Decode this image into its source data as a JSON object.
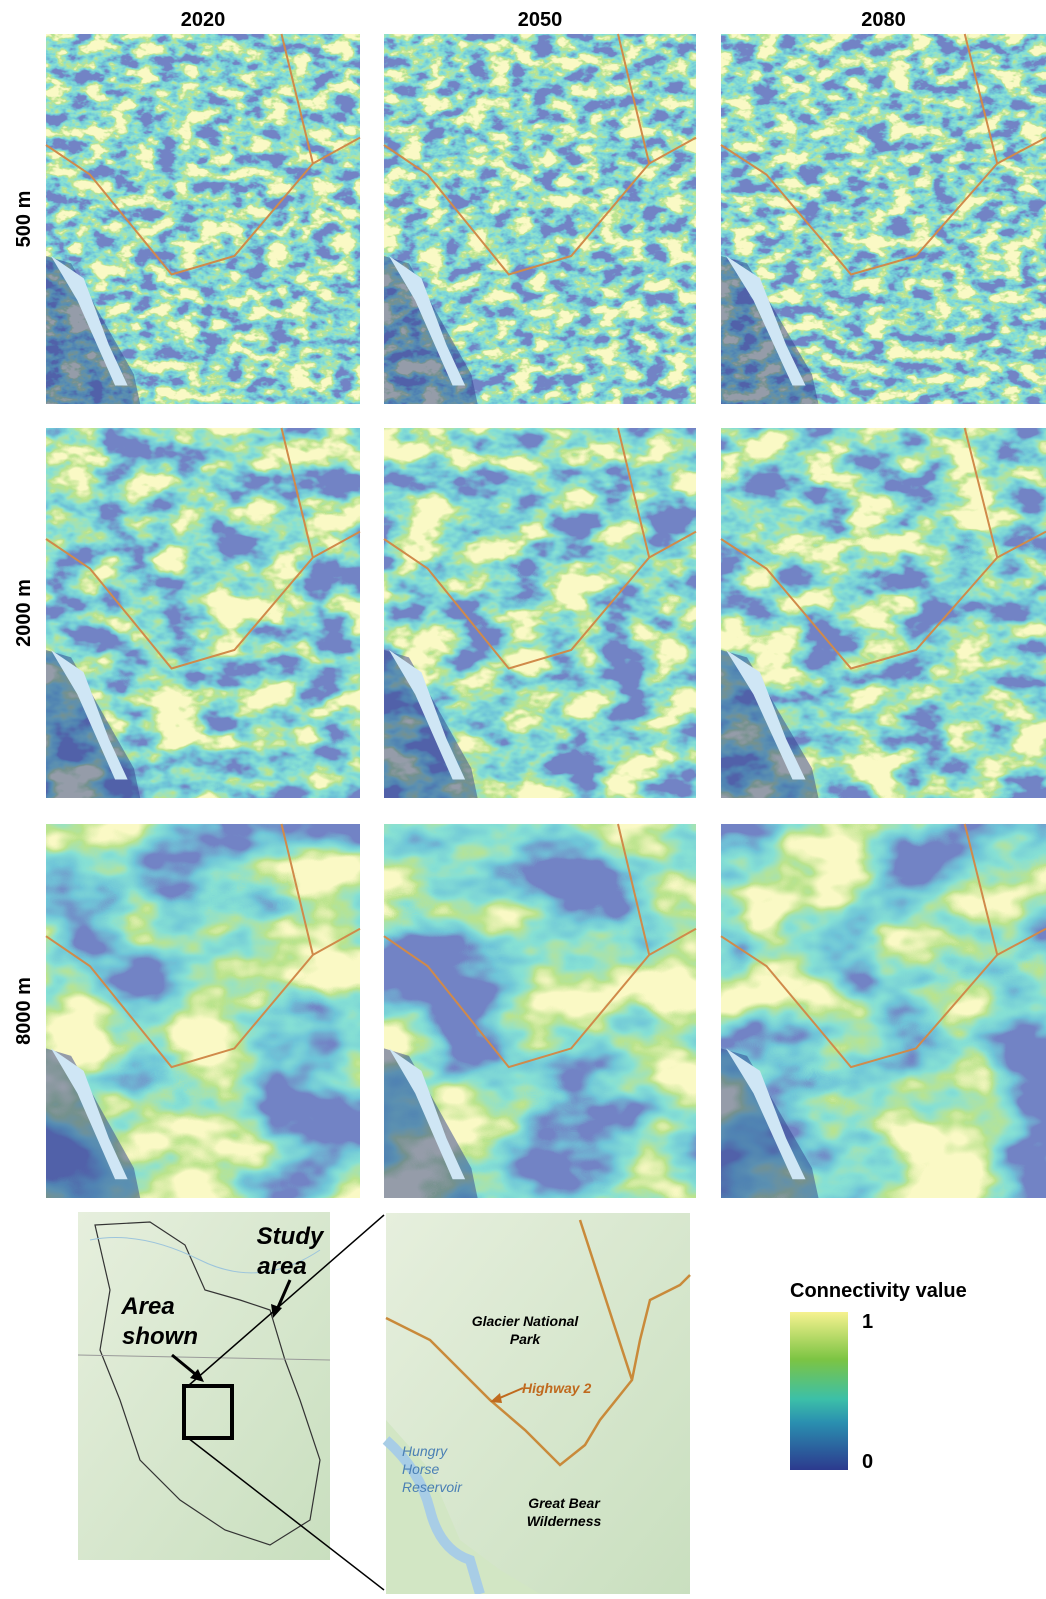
{
  "column_headers": [
    "2020",
    "2050",
    "2080"
  ],
  "row_labels": [
    "500 m",
    "2000 m",
    "8000 m"
  ],
  "inset_map": {
    "study_area": [
      "Study",
      "area"
    ],
    "area_shown": [
      "Area",
      "shown"
    ]
  },
  "zoom_map": {
    "park": [
      "Glacier National",
      "Park"
    ],
    "highway": "Highway 2",
    "reservoir": [
      "Hungry",
      "Horse",
      "Reservoir"
    ],
    "wilderness": [
      "Great Bear",
      "Wilderness"
    ]
  },
  "legend": {
    "title": "Connectivity value",
    "max": 1,
    "min": 0
  }
}
